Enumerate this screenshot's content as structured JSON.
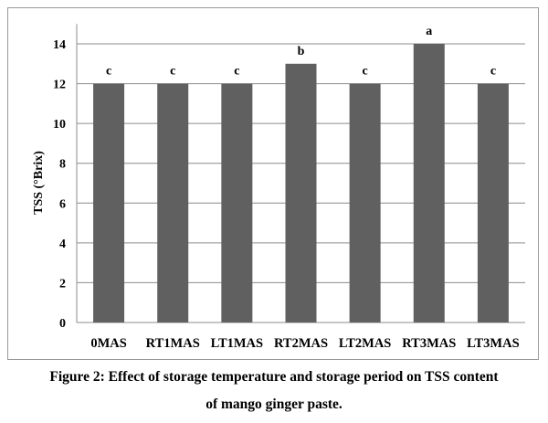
{
  "chart_data": {
    "type": "bar",
    "title": "",
    "xlabel": "",
    "ylabel": "TSS (°Brix)",
    "ylim": [
      0,
      15
    ],
    "yticks": [
      0,
      2,
      4,
      6,
      8,
      10,
      12,
      14
    ],
    "grid": true,
    "categories": [
      "0MAS",
      "RT1MAS",
      "LT1MAS",
      "RT2MAS",
      "LT2MAS",
      "RT3MAS",
      "LT3MAS"
    ],
    "values": [
      12,
      12,
      12,
      13,
      12,
      14,
      12
    ],
    "significance_labels": [
      "c",
      "c",
      "c",
      "b",
      "c",
      "a",
      "c"
    ],
    "bar_color": "#606060"
  },
  "caption": {
    "line1": "Figure 2: Effect of storage temperature and storage period on TSS content",
    "line2": "of mango ginger paste."
  }
}
